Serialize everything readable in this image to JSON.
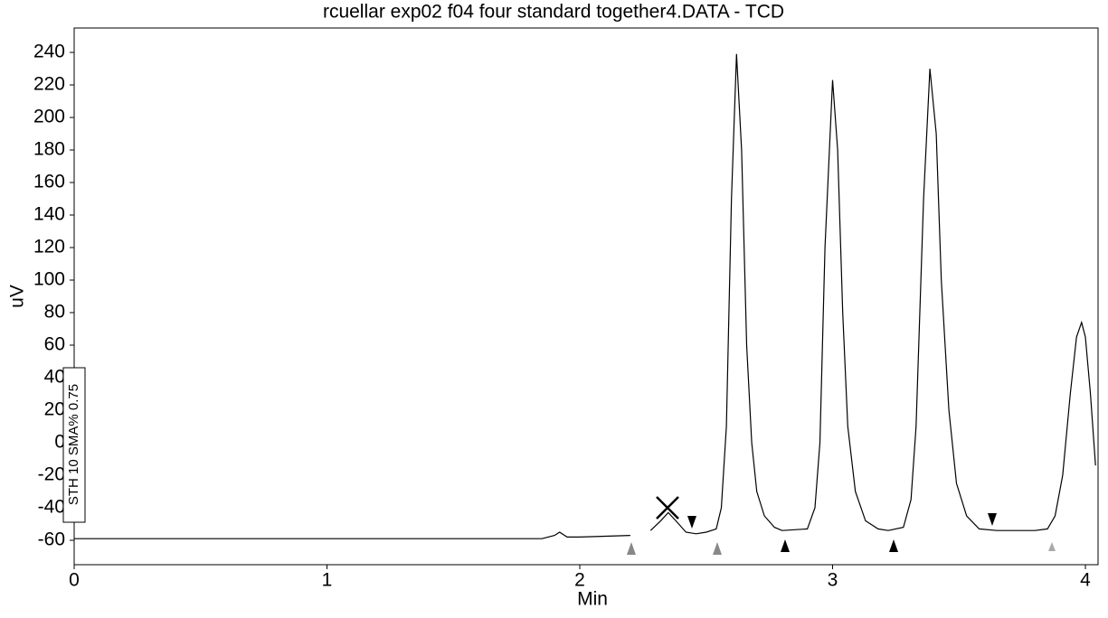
{
  "chart_data": {
    "type": "line",
    "title": "rcuellar exp02 f04 four standard together4.DATA - TCD",
    "x_label": "Min",
    "y_label": "uV",
    "annotation": "STH 10  SMA% 0.75",
    "xlim": [
      0,
      4.05
    ],
    "ylim": [
      -75,
      255
    ],
    "xticks": [
      0,
      1,
      2,
      3,
      4
    ],
    "yticks": [
      -60,
      -40,
      -20,
      0,
      20,
      40,
      60,
      80,
      100,
      120,
      140,
      160,
      180,
      200,
      220,
      240
    ],
    "series": [
      {
        "color": "#000000",
        "x": [
          0,
          0.5,
          1.0,
          1.5,
          1.85,
          1.9,
          1.92,
          1.95,
          2.0,
          2.2,
          2.24,
          2.28,
          2.32,
          2.35,
          2.38,
          2.42,
          2.46,
          2.5,
          2.54,
          2.56,
          2.58,
          2.6,
          2.62,
          2.64,
          2.66,
          2.68,
          2.7,
          2.73,
          2.77,
          2.8,
          2.9,
          2.93,
          2.95,
          2.97,
          3.0,
          3.02,
          3.04,
          3.06,
          3.09,
          3.13,
          3.18,
          3.22,
          3.28,
          3.31,
          3.33,
          3.36,
          3.385,
          3.41,
          3.43,
          3.46,
          3.49,
          3.53,
          3.58,
          3.65,
          3.8,
          3.85,
          3.88,
          3.91,
          3.94,
          3.965,
          3.985,
          4.0,
          4.02,
          4.04
        ],
        "values": [
          -59,
          -59,
          -59,
          -59,
          -59,
          -57,
          -55,
          -58,
          -58,
          -57,
          null,
          -54,
          -48,
          -43,
          -48,
          -55,
          -56,
          -55,
          -53,
          -40,
          10,
          150,
          239,
          180,
          60,
          0,
          -30,
          -45,
          -52,
          -54,
          -53,
          -40,
          0,
          120,
          223,
          180,
          80,
          10,
          -30,
          -48,
          -53,
          -54,
          -52,
          -35,
          10,
          150,
          230,
          190,
          100,
          20,
          -25,
          -45,
          -53,
          -54,
          -54,
          -53,
          -45,
          -20,
          30,
          65,
          74,
          65,
          30,
          -14
        ]
      }
    ]
  }
}
